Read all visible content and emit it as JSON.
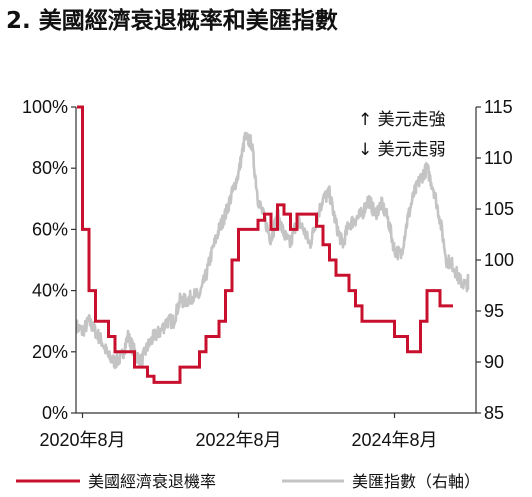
{
  "chart_data": {
    "type": "line",
    "title": "2. 美國經濟衰退概率和美匯指數",
    "x_ticks": [
      "2020年8月",
      "2022年8月",
      "2024年8月"
    ],
    "y_left": {
      "min": 0,
      "max": 100,
      "ticks": [
        "0%",
        "20%",
        "40%",
        "60%",
        "80%",
        "100%"
      ]
    },
    "y_right": {
      "min": 85,
      "max": 115,
      "ticks": [
        "85",
        "90",
        "95",
        "100",
        "105",
        "110",
        "115"
      ]
    },
    "annotations": [
      "↑ 美元走強",
      "↓ 美元走弱"
    ],
    "colors": {
      "recession": "#c8102e",
      "dxy": "#c4c4c4",
      "axis": "#333333"
    },
    "series": [
      {
        "name": "美國經濟衰退機率",
        "axis": "left",
        "step": true,
        "points": [
          [
            "2020-07",
            100
          ],
          [
            "2020-08",
            60
          ],
          [
            "2020-09",
            40
          ],
          [
            "2020-10",
            30
          ],
          [
            "2020-12",
            25
          ],
          [
            "2021-01",
            20
          ],
          [
            "2021-04",
            15
          ],
          [
            "2021-06",
            12
          ],
          [
            "2021-07",
            10
          ],
          [
            "2021-10",
            10
          ],
          [
            "2021-11",
            15
          ],
          [
            "2022-02",
            20
          ],
          [
            "2022-03",
            25
          ],
          [
            "2022-05",
            30
          ],
          [
            "2022-06",
            40
          ],
          [
            "2022-07",
            50
          ],
          [
            "2022-08",
            60
          ],
          [
            "2022-10",
            60
          ],
          [
            "2022-11",
            63
          ],
          [
            "2022-12",
            65
          ],
          [
            "2023-01",
            60
          ],
          [
            "2023-02",
            68
          ],
          [
            "2023-03",
            65
          ],
          [
            "2023-04",
            60
          ],
          [
            "2023-05",
            65
          ],
          [
            "2023-07",
            65
          ],
          [
            "2023-08",
            61
          ],
          [
            "2023-09",
            55
          ],
          [
            "2023-10",
            50
          ],
          [
            "2023-11",
            45
          ],
          [
            "2024-01",
            40
          ],
          [
            "2024-02",
            35
          ],
          [
            "2024-03",
            30
          ],
          [
            "2024-07",
            30
          ],
          [
            "2024-08",
            25
          ],
          [
            "2024-10",
            20
          ],
          [
            "2024-12",
            30
          ],
          [
            "2025-01",
            40
          ],
          [
            "2025-03",
            35
          ],
          [
            "2025-05",
            35
          ]
        ]
      },
      {
        "name": "美匯指數（右軸）",
        "axis": "right",
        "step": false,
        "points": [
          [
            "2020-07",
            93.5
          ],
          [
            "2020-08",
            93
          ],
          [
            "2020-09",
            94
          ],
          [
            "2020-10",
            93
          ],
          [
            "2020-11",
            92
          ],
          [
            "2020-12",
            90.5
          ],
          [
            "2021-01",
            90
          ],
          [
            "2021-02",
            90.5
          ],
          [
            "2021-03",
            92.5
          ],
          [
            "2021-04",
            91
          ],
          [
            "2021-05",
            90
          ],
          [
            "2021-06",
            91.5
          ],
          [
            "2021-07",
            92.5
          ],
          [
            "2021-08",
            93
          ],
          [
            "2021-09",
            94
          ],
          [
            "2021-10",
            94
          ],
          [
            "2021-11",
            96
          ],
          [
            "2021-12",
            96
          ],
          [
            "2022-01",
            96.5
          ],
          [
            "2022-02",
            96.5
          ],
          [
            "2022-03",
            98.5
          ],
          [
            "2022-04",
            101
          ],
          [
            "2022-05",
            103
          ],
          [
            "2022-06",
            104.5
          ],
          [
            "2022-07",
            106.5
          ],
          [
            "2022-08",
            108.5
          ],
          [
            "2022-09",
            112
          ],
          [
            "2022-10",
            111.5
          ],
          [
            "2022-11",
            106
          ],
          [
            "2022-12",
            104
          ],
          [
            "2023-01",
            102
          ],
          [
            "2023-02",
            104.5
          ],
          [
            "2023-03",
            102.5
          ],
          [
            "2023-04",
            101.5
          ],
          [
            "2023-05",
            104
          ],
          [
            "2023-06",
            103
          ],
          [
            "2023-07",
            101.5
          ],
          [
            "2023-08",
            104
          ],
          [
            "2023-09",
            106
          ],
          [
            "2023-10",
            106.5
          ],
          [
            "2023-11",
            103.5
          ],
          [
            "2023-12",
            101.5
          ],
          [
            "2024-01",
            103.5
          ],
          [
            "2024-02",
            104
          ],
          [
            "2024-03",
            104.5
          ],
          [
            "2024-04",
            106
          ],
          [
            "2024-05",
            104.5
          ],
          [
            "2024-06",
            105.5
          ],
          [
            "2024-07",
            104
          ],
          [
            "2024-08",
            101
          ],
          [
            "2024-09",
            100.5
          ],
          [
            "2024-10",
            104
          ],
          [
            "2024-11",
            106.5
          ],
          [
            "2024-12",
            108
          ],
          [
            "2025-01",
            109
          ],
          [
            "2025-02",
            107
          ],
          [
            "2025-03",
            104
          ],
          [
            "2025-04",
            100
          ],
          [
            "2025-05",
            99.5
          ],
          [
            "2025-06",
            98
          ],
          [
            "2025-07",
            97.5
          ],
          [
            "2025-08",
            98.5
          ],
          [
            "2025-09",
            97.5
          ]
        ]
      }
    ],
    "legend": {
      "position": "bottom",
      "items": [
        "美國經濟衰退機率",
        "美匯指數（右軸）"
      ]
    }
  }
}
